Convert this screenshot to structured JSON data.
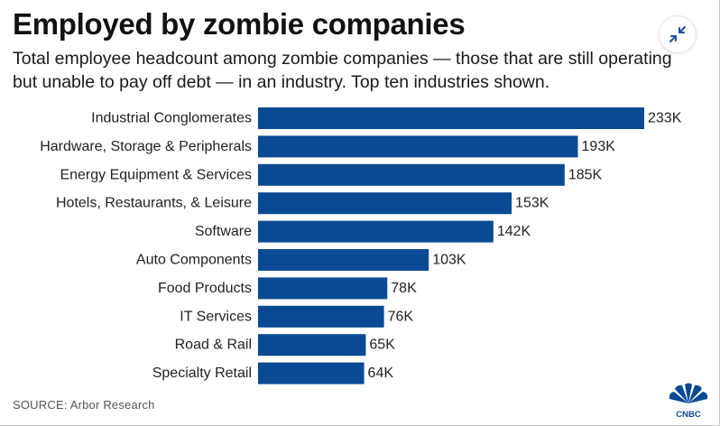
{
  "title": "Employed by zombie companies",
  "subtitle": "Total employee headcount among zombie companies — those that are still operating but unable to pay off debt — in an industry. Top ten industries shown.",
  "source": "SOURCE: Arbor Research",
  "logo": {
    "text": "CNBC",
    "icon": "cnbc-peacock-logo"
  },
  "collapse_button": {
    "icon": "collapse-arrows-icon",
    "color": "#1f4f98"
  },
  "colors": {
    "bar": "#0a4a93",
    "text": "#222222"
  },
  "chart_data": {
    "type": "bar",
    "orientation": "horizontal",
    "categories": [
      "Industrial Conglomerates",
      "Hardware, Storage & Peripherals",
      "Energy Equipment & Services",
      "Hotels, Restaurants, & Leisure",
      "Software",
      "Auto Components",
      "Food Products",
      "IT Services",
      "Road & Rail",
      "Specialty Retail"
    ],
    "values": [
      233,
      193,
      185,
      153,
      142,
      103,
      78,
      76,
      65,
      64
    ],
    "data_labels": [
      "233K",
      "193K",
      "185K",
      "153K",
      "142K",
      "103K",
      "78K",
      "76K",
      "65K",
      "64K"
    ],
    "unit": "K",
    "xlim": [
      0,
      233
    ],
    "grid": false,
    "legend": "none"
  }
}
